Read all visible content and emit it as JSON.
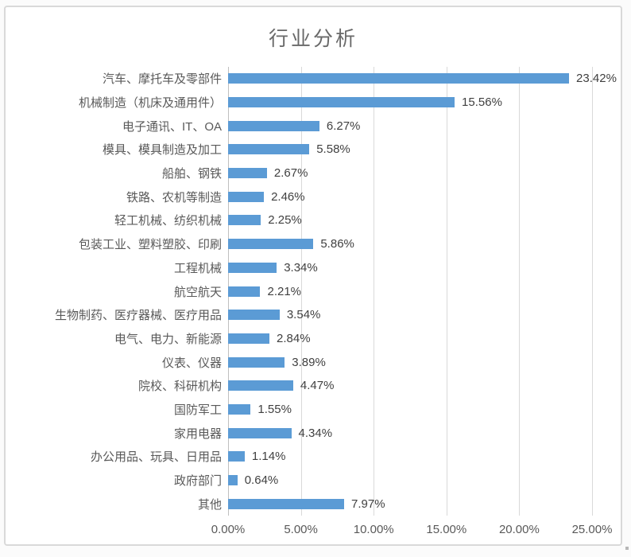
{
  "colors": {
    "bar": "#5b9bd5",
    "grid": "#d9d9d9",
    "axis_line": "#bfbfbf",
    "title_text": "#696969",
    "label_text": "#595959",
    "value_text": "#404040",
    "frame_border": "#d9d9d9"
  },
  "chart_data": {
    "type": "bar",
    "orientation": "horizontal",
    "title": "行业分析",
    "categories": [
      "汽车、摩托车及零部件",
      "机械制造（机床及通用件）",
      "电子通讯、IT、OA",
      "模具、模具制造及加工",
      "船舶、钢铁",
      "铁路、农机等制造",
      "轻工机械、纺织机械",
      "包装工业、塑料塑胶、印刷",
      "工程机械",
      "航空航天",
      "生物制药、医疗器械、医疗用品",
      "电气、电力、新能源",
      "仪表、仪器",
      "院校、科研机构",
      "国防军工",
      "家用电器",
      "办公用品、玩具、日用品",
      "政府部门",
      "其他"
    ],
    "values": [
      23.42,
      15.56,
      6.27,
      5.58,
      2.67,
      2.46,
      2.25,
      5.86,
      3.34,
      2.21,
      3.54,
      2.84,
      3.89,
      4.47,
      1.55,
      4.34,
      1.14,
      0.64,
      7.97
    ],
    "value_labels": [
      "23.42%",
      "15.56%",
      "6.27%",
      "5.58%",
      "2.67%",
      "2.46%",
      "2.25%",
      "5.86%",
      "3.34%",
      "2.21%",
      "3.54%",
      "2.84%",
      "3.89%",
      "4.47%",
      "1.55%",
      "4.34%",
      "1.14%",
      "0.64%",
      "7.97%"
    ],
    "xlim": [
      0,
      25
    ],
    "x_ticks": [
      "0.00%",
      "5.00%",
      "10.00%",
      "15.00%",
      "20.00%",
      "25.00%"
    ],
    "x_tick_values": [
      0,
      5,
      10,
      15,
      20,
      25
    ],
    "grid": true,
    "legend": false
  }
}
